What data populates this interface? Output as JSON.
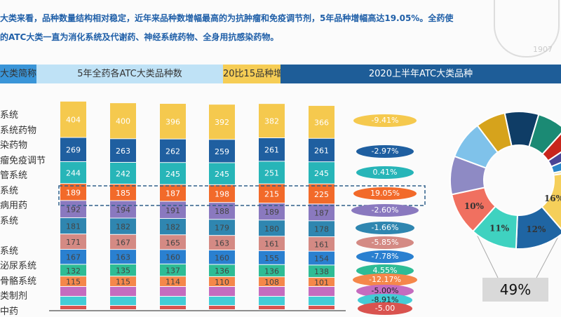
{
  "intro": {
    "line1": "大类来看，品种数量结构相对稳定，近年来品种数增幅最高的为抗肿瘤和免疫调节剂，5年品种增幅高达19.05%。全药使",
    "line2": "的ATC大类一直为消化系统及代谢药、神经系统药物、全身用抗感染药物。"
  },
  "watermark": {
    "year": "1907"
  },
  "header": {
    "col1": "大类简称",
    "col2": "5年全药各ATC大类品种数",
    "col3": "20比15品种增幅",
    "col4": "2020上半年ATC大类品种"
  },
  "row_labels": [
    "系统",
    "系统药物",
    "染药物",
    "瘤免疫调节",
    "管系统",
    "系统",
    "病用药",
    "系统",
    "",
    "系统",
    "泌尿系统",
    "骨骼系统",
    "类制剂",
    "中药"
  ],
  "chart_data": [
    {
      "type": "bar",
      "stacked": true,
      "title": "5年全药各ATC大类品种数",
      "series": [
        {
          "color": "#f5c94e",
          "values": [
            404,
            400,
            396,
            392,
            382,
            366
          ]
        },
        {
          "color": "#1f5fa0",
          "values": [
            269,
            263,
            262,
            259,
            261,
            261
          ]
        },
        {
          "color": "#27b5b8",
          "values": [
            244,
            242,
            245,
            245,
            251,
            245
          ]
        },
        {
          "color": "#f26a2a",
          "values": [
            189,
            185,
            187,
            198,
            215,
            225
          ]
        },
        {
          "color": "#8a79bf",
          "values": [
            192,
            194,
            191,
            188,
            189,
            187
          ]
        },
        {
          "color": "#2f86b0",
          "values": [
            181,
            182,
            182,
            179,
            180,
            178
          ]
        },
        {
          "color": "#d48a84",
          "values": [
            171,
            167,
            165,
            163,
            161,
            161
          ]
        },
        {
          "color": "#2a80d0",
          "values": [
            167,
            163,
            160,
            160,
            155,
            154
          ]
        },
        {
          "color": "#2ebc95",
          "values": [
            132,
            135,
            137,
            136,
            136,
            138
          ]
        },
        {
          "color": "#f5874a",
          "values": [
            115,
            115,
            114,
            110,
            108,
            101
          ]
        },
        {
          "color": "#c56cbf",
          "values": [
            null,
            null,
            null,
            null,
            null,
            null
          ]
        },
        {
          "color": "#43ccd6",
          "values": [
            null,
            null,
            null,
            null,
            null,
            null
          ]
        },
        {
          "color": "#d9534f",
          "values": [
            null,
            null,
            null,
            null,
            null,
            null
          ]
        }
      ]
    },
    {
      "type": "table",
      "title": "20比15品种增幅",
      "values": [
        "-9.41%",
        "-2.97%",
        "0.41%",
        "19.05%",
        "-2.60%",
        "-1.66%",
        "-5.85%",
        "-7.78%",
        "4.55%",
        "-12.17%",
        "-5.00%",
        "-8.91%",
        "-5.00"
      ],
      "colors": [
        "#f5c94e",
        "#1f5fa0",
        "#27b5b8",
        "#f26a2a",
        "#8a79bf",
        "#2f86b0",
        "#d48a84",
        "#2a80d0",
        "#2ebc95",
        "#f5874a",
        "#c56cbf",
        "#43ccd6",
        "#d9534f"
      ]
    },
    {
      "type": "pie",
      "title": "2020上半年ATC大类品种",
      "slices": [
        {
          "value": 8,
          "color": "#0f3d66",
          "label": ""
        },
        {
          "value": 7,
          "color": "#1b8a74",
          "label": ""
        },
        {
          "value": 4,
          "color": "#c8261c",
          "label": ""
        },
        {
          "value": 3,
          "color": "#4a4595",
          "label": ""
        },
        {
          "value": 3,
          "color": "#2a86c8",
          "label": ""
        },
        {
          "value": 1,
          "color": "#f3e3a0",
          "label": ""
        },
        {
          "value": 16,
          "color": "#f5cf5a",
          "label": "16%"
        },
        {
          "value": 12,
          "color": "#1f65a3",
          "label": "12%"
        },
        {
          "value": 11,
          "color": "#3fd2c0",
          "label": "11%"
        },
        {
          "value": 10,
          "color": "#f07060",
          "label": "10%"
        },
        {
          "value": 9,
          "color": "#8e8ac4",
          "label": ""
        },
        {
          "value": 9,
          "color": "#7fc2ea",
          "label": ""
        },
        {
          "value": 7,
          "color": "#d6a31c",
          "label": ""
        }
      ],
      "callout": "49%"
    }
  ]
}
